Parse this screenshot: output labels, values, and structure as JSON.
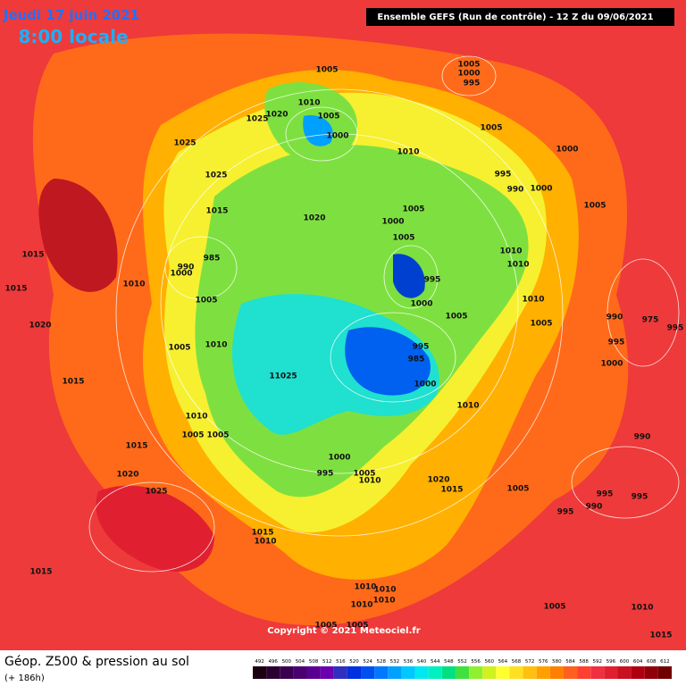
{
  "header": {
    "date": "Jeudi 17 juin 2021",
    "time": "8:00 locale",
    "run": "Ensemble GEFS  (Run de contrôle)  - 12 Z du 09/06/2021"
  },
  "isobar_labels": [
    "1005",
    "1005",
    "1000",
    "995",
    "1010",
    "1005",
    "1000",
    "1020",
    "1025",
    "1025",
    "1010",
    "1005",
    "1000",
    "995",
    "990",
    "1000",
    "1025",
    "1015",
    "1020",
    "1005",
    "1000",
    "1005",
    "1005",
    "1015",
    "1015",
    "1010",
    "985",
    "990",
    "1000",
    "1005",
    "995",
    "1000",
    "1010",
    "1010",
    "1010",
    "1005",
    "1005",
    "1020",
    "990",
    "975",
    "995",
    "995",
    "1015",
    "1005",
    "1010",
    "11025",
    "995",
    "985",
    "1000",
    "1000",
    "1010",
    "1010",
    "1005",
    "1005",
    "1015",
    "990",
    "1000",
    "995",
    "1005",
    "1010",
    "1020",
    "1015",
    "1005",
    "1020",
    "1025",
    "995",
    "995",
    "990",
    "995",
    "1015",
    "1010",
    "1015",
    "1010",
    "1010",
    "1010",
    "1010",
    "1005",
    "1010",
    "1015",
    "1005",
    "1005"
  ],
  "footer": {
    "title": "Géop. Z500 & pression au sol",
    "lead_time": "(+ 186h)",
    "copyright": "Copyright © 2021 Meteociel.fr"
  },
  "scale": {
    "values": [
      492,
      496,
      500,
      504,
      508,
      512,
      516,
      520,
      524,
      528,
      532,
      536,
      540,
      544,
      548,
      552,
      556,
      560,
      564,
      568,
      572,
      576,
      580,
      584,
      588,
      592,
      596,
      600,
      604,
      608,
      612
    ],
    "colors": [
      "#1a0010",
      "#2a0030",
      "#3a0050",
      "#4b0070",
      "#5a0090",
      "#6a00b0",
      "#3030c0",
      "#0030e0",
      "#0050f0",
      "#0078ff",
      "#00a0ff",
      "#00c8ff",
      "#00e8f0",
      "#00f0c0",
      "#00e080",
      "#40e040",
      "#90f030",
      "#d0f020",
      "#ffff30",
      "#ffe020",
      "#ffc010",
      "#ffa000",
      "#ff8000",
      "#ff6020",
      "#ff4030",
      "#f03040",
      "#e02030",
      "#c81020",
      "#b00010",
      "#900008",
      "#700000"
    ]
  }
}
